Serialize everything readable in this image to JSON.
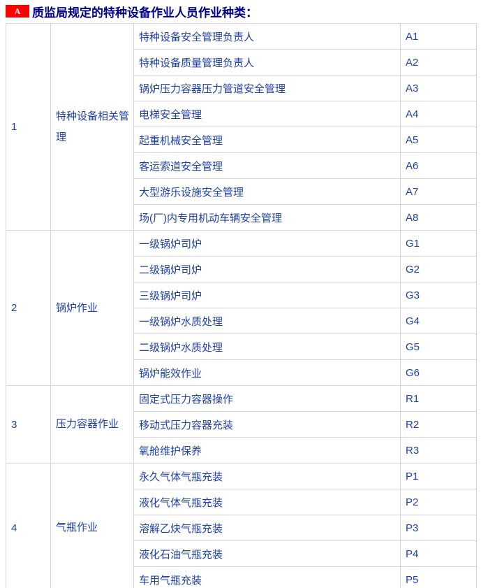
{
  "header": {
    "badge": "A",
    "title": "质监局规定的特种设备作业人员作业种类："
  },
  "colors": {
    "badge_bg": "#ff0000",
    "badge_color": "#ffffff",
    "title_text": "#000087",
    "cell_text": "#1f41a8",
    "border": "#d6d6d6"
  },
  "table": {
    "groups": [
      {
        "no": "1",
        "category": "特种设备相关管理",
        "rows": [
          {
            "job": "特种设备安全管理负责人",
            "code": "A1"
          },
          {
            "job": "特种设备质量管理负责人",
            "code": "A2"
          },
          {
            "job": "锅炉压力容器压力管道安全管理",
            "code": "A3"
          },
          {
            "job": "电梯安全管理",
            "code": "A4"
          },
          {
            "job": "起重机械安全管理",
            "code": "A5"
          },
          {
            "job": "客运索道安全管理",
            "code": "A6"
          },
          {
            "job": "大型游乐设施安全管理",
            "code": "A7"
          },
          {
            "job": "场(厂)内专用机动车辆安全管理",
            "code": "A8"
          }
        ]
      },
      {
        "no": "2",
        "category": "锅炉作业",
        "rows": [
          {
            "job": "一级锅炉司炉",
            "code": "G1"
          },
          {
            "job": "二级锅炉司炉",
            "code": "G2"
          },
          {
            "job": "三级锅炉司炉",
            "code": "G3"
          },
          {
            "job": "一级锅炉水质处理",
            "code": "G4"
          },
          {
            "job": "二级锅炉水质处理",
            "code": "G5"
          },
          {
            "job": "锅炉能效作业",
            "code": "G6"
          }
        ]
      },
      {
        "no": "3",
        "category": "压力容器作业",
        "rows": [
          {
            "job": "固定式压力容器操作",
            "code": "R1"
          },
          {
            "job": "移动式压力容器充装",
            "code": "R2"
          },
          {
            "job": "氧舱维护保养",
            "code": "R3"
          }
        ]
      },
      {
        "no": "4",
        "category": "气瓶作业",
        "rows": [
          {
            "job": "永久气体气瓶充装",
            "code": "P1"
          },
          {
            "job": "液化气体气瓶充装",
            "code": "P2"
          },
          {
            "job": "溶解乙炔气瓶充装",
            "code": "P3"
          },
          {
            "job": "液化石油气瓶充装",
            "code": "P4"
          },
          {
            "job": "车用气瓶充装",
            "code": "P5"
          }
        ]
      }
    ]
  }
}
